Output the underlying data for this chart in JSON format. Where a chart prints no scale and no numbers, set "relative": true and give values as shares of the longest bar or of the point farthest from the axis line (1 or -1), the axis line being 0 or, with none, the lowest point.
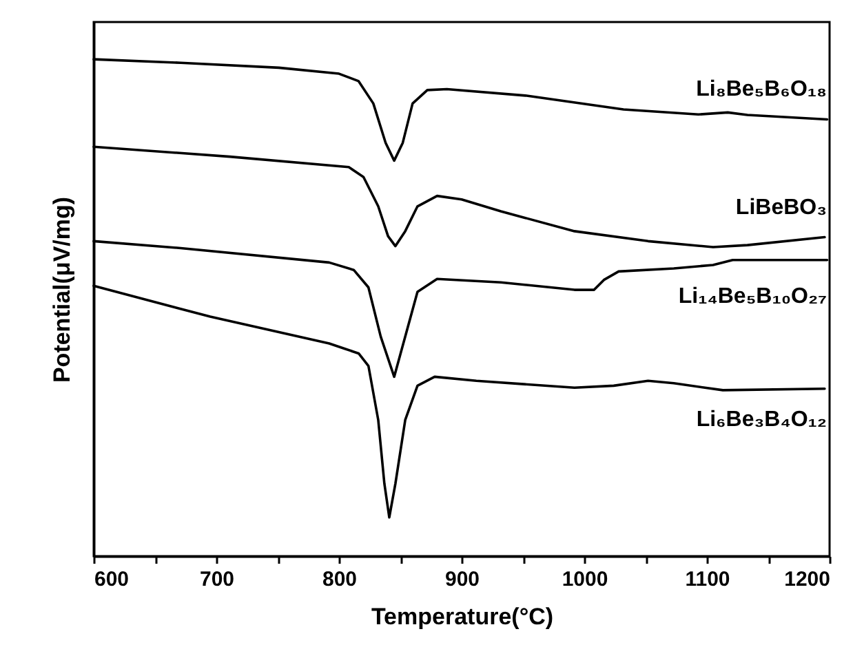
{
  "chart_data": {
    "type": "line",
    "xlabel": "Temperature(°C)",
    "ylabel": "Potential(μV/mg)",
    "relative": true,
    "xlim": [
      600,
      1200
    ],
    "xticks": [
      600,
      {
        "value": 650,
        "label": null
      },
      700,
      {
        "value": 750,
        "label": null
      },
      800,
      {
        "value": 850,
        "label": null
      },
      900,
      {
        "value": 950,
        "label": null
      },
      1000,
      {
        "value": 1050,
        "label": null
      },
      1100,
      {
        "value": 1150,
        "label": null
      },
      1200
    ],
    "grid": false,
    "marker": "none",
    "line_style": "solid",
    "series": [
      {
        "name": "Li₈Be₅B₆O₁₈",
        "color": "#000000",
        "x": [
          600,
          671,
          751,
          800,
          816,
          828,
          838,
          845,
          852,
          860,
          872,
          888,
          952,
          1032,
          1093,
          1117,
          1133,
          1198
        ],
        "values": [
          1.0,
          0.993,
          0.983,
          0.971,
          0.956,
          0.911,
          0.832,
          0.796,
          0.832,
          0.911,
          0.938,
          0.94,
          0.927,
          0.899,
          0.889,
          0.893,
          0.888,
          0.879
        ]
      },
      {
        "name": "LiBeBO₃",
        "color": "#000000",
        "x": [
          600,
          711,
          808,
          820,
          832,
          840,
          846,
          854,
          864,
          880,
          900,
          932,
          992,
          1052,
          1105,
          1133,
          1196
        ],
        "values": [
          0.824,
          0.804,
          0.783,
          0.763,
          0.704,
          0.644,
          0.624,
          0.654,
          0.704,
          0.725,
          0.718,
          0.694,
          0.654,
          0.634,
          0.622,
          0.626,
          0.642
        ]
      },
      {
        "name": "Li₁₄Be₅B₁₀O₂₇",
        "color": "#000000",
        "x": [
          600,
          671,
          792,
          812,
          824,
          834,
          845,
          854,
          864,
          880,
          932,
          992,
          1008,
          1016,
          1028,
          1073,
          1105,
          1121,
          1198
        ],
        "values": [
          0.634,
          0.62,
          0.591,
          0.576,
          0.541,
          0.442,
          0.361,
          0.442,
          0.532,
          0.558,
          0.551,
          0.536,
          0.536,
          0.556,
          0.573,
          0.579,
          0.586,
          0.596,
          0.596
        ]
      },
      {
        "name": "Li₆Be₃B₄O₁₂",
        "color": "#000000",
        "x": [
          600,
          695,
          792,
          816,
          824,
          832,
          837,
          841,
          846,
          854,
          864,
          878,
          912,
          992,
          1024,
          1052,
          1073,
          1113,
          1196
        ],
        "values": [
          0.544,
          0.482,
          0.428,
          0.408,
          0.383,
          0.274,
          0.146,
          0.078,
          0.146,
          0.274,
          0.343,
          0.361,
          0.353,
          0.339,
          0.343,
          0.353,
          0.348,
          0.334,
          0.337
        ]
      }
    ]
  }
}
